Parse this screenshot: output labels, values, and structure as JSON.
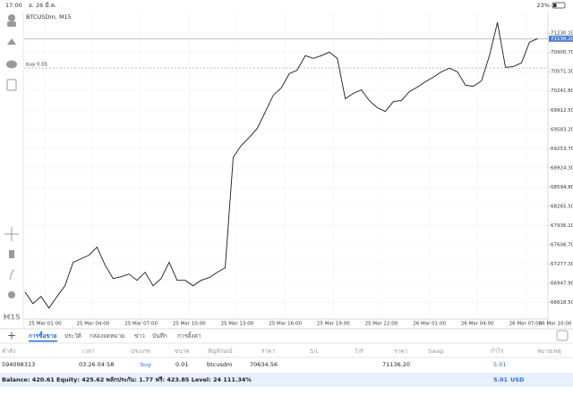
{
  "status_bar": {
    "time": "17:00",
    "date": "อ. 26 มี.ค.",
    "battery": "23%"
  },
  "toolbar": {
    "timeframe": "M15"
  },
  "chart_data": {
    "type": "line",
    "title": "BTCUSDm, M15",
    "x": [
      -0.25,
      0.25,
      0.75,
      1.25,
      1.75,
      2.25,
      2.75,
      3.25,
      3.75,
      4.25,
      4.75,
      5.25,
      5.75,
      6.25,
      6.75,
      7.25,
      7.75,
      8.25,
      8.75,
      9.25,
      9.75,
      10.25,
      10.75,
      11.25,
      11.75,
      12.25,
      12.75,
      13.25,
      13.75,
      14.25,
      14.75,
      15.25,
      15.75,
      16.25,
      16.75,
      17.25,
      17.75,
      18.25,
      18.75,
      19.25,
      19.75,
      20.25,
      20.75,
      21.25,
      21.75,
      22.25,
      22.75,
      23.25,
      23.75,
      24.25,
      24.75,
      25.25,
      25.75,
      26.25,
      26.75,
      27.25,
      27.75,
      28.25,
      28.75,
      29.25,
      29.75,
      30.25,
      30.75,
      31.25,
      31.75
    ],
    "series": [
      {
        "color": "#1a1a1a",
        "values": [
          66798,
          66598,
          66721,
          66521,
          66721,
          66905,
          67306,
          67367,
          67429,
          67567,
          67259,
          67029,
          67059,
          67105,
          66998,
          67136,
          66905,
          67029,
          67306,
          66998,
          66998,
          66905,
          66998,
          67044,
          67136,
          67213,
          69106,
          69306,
          69445,
          69599,
          69876,
          70168,
          70291,
          70537,
          70599,
          70845,
          70799,
          70845,
          70907,
          70799,
          70107,
          70199,
          70260,
          70076,
          69953,
          69891,
          70060,
          70076,
          70230,
          70307,
          70399,
          70476,
          70568,
          70630,
          70568,
          70337,
          70322,
          70414,
          70845,
          71415,
          70645,
          70661,
          70722,
          71076,
          71136
        ]
      }
    ],
    "xlim": [
      -0.3,
      32.4
    ],
    "xticks": [
      {
        "value": 1,
        "label": "25 Mar 01:00"
      },
      {
        "value": 4,
        "label": "25 Mar 04:00"
      },
      {
        "value": 7,
        "label": "25 Mar 07:00"
      },
      {
        "value": 10,
        "label": "25 Mar 10:00"
      },
      {
        "value": 13,
        "label": "25 Mar 13:00"
      },
      {
        "value": 16,
        "label": "25 Mar 16:00"
      },
      {
        "value": 19,
        "label": "25 Mar 19:00"
      },
      {
        "value": 22,
        "label": "25 Mar 22:00"
      },
      {
        "value": 25,
        "label": "26 Mar 01:00"
      },
      {
        "value": 28,
        "label": "26 Mar 04:00"
      },
      {
        "value": 31,
        "label": "26 Mar 07:00"
      },
      {
        "value": 34,
        "label": "26 Mar 10:00"
      }
    ],
    "ylim": [
      66335,
      71600
    ],
    "yticks": [
      {
        "value": 71230.1,
        "label": "71230.10"
      },
      {
        "value": 70900.7,
        "label": "70900.70"
      },
      {
        "value": 70571.3,
        "label": "70571.30"
      },
      {
        "value": 70241.8,
        "label": "70241.80"
      },
      {
        "value": 69912.5,
        "label": "69912.50"
      },
      {
        "value": 69583.2,
        "label": "69583.20"
      },
      {
        "value": 69253.7,
        "label": "69253.70"
      },
      {
        "value": 68924.3,
        "label": "68924.30"
      },
      {
        "value": 68594.8,
        "label": "68594.80"
      },
      {
        "value": 68265.5,
        "label": "68265.50"
      },
      {
        "value": 67936.1,
        "label": "67936.10"
      },
      {
        "value": 67606.7,
        "label": "67606.70"
      },
      {
        "value": 67277.3,
        "label": "67277.30"
      },
      {
        "value": 66947.9,
        "label": "66947.90"
      },
      {
        "value": 66618.5,
        "label": "66618.50"
      }
    ],
    "current_price": {
      "value": 71136.2,
      "label": "71136.20"
    },
    "order_line": {
      "value": 70634.56,
      "label": "buy 0.01"
    },
    "grid": true
  },
  "tabs": {
    "items": [
      "การซื้อขาย",
      "ประวัติ",
      "กล่องจดหมาย",
      "ข่าว",
      "บันทึก",
      "การตั้งค่า"
    ],
    "active": 0
  },
  "table": {
    "headers": [
      "คำสั่ง",
      "เวลา",
      "ประเภท",
      "ขนาด",
      "สัญลักษณ์",
      "ราคา",
      "S/L",
      "T/P",
      "ราคา",
      "Swap",
      "กำไร",
      "หมายเหตุ"
    ],
    "rows": [
      {
        "order": "594098313",
        "time": "03.26 04:58",
        "type": "buy",
        "size": "0.01",
        "symbol": "btcusdm",
        "open_price": "70634.56",
        "price": "71136.20",
        "profit": "5.01"
      }
    ]
  },
  "footer": {
    "summary": "Balance: 420.61 Equity: 425.62 พลักประกัน: 1.77 ฟรี: 423.85 Level: 24 111.34%",
    "profit": "5.01",
    "currency": "USD"
  }
}
